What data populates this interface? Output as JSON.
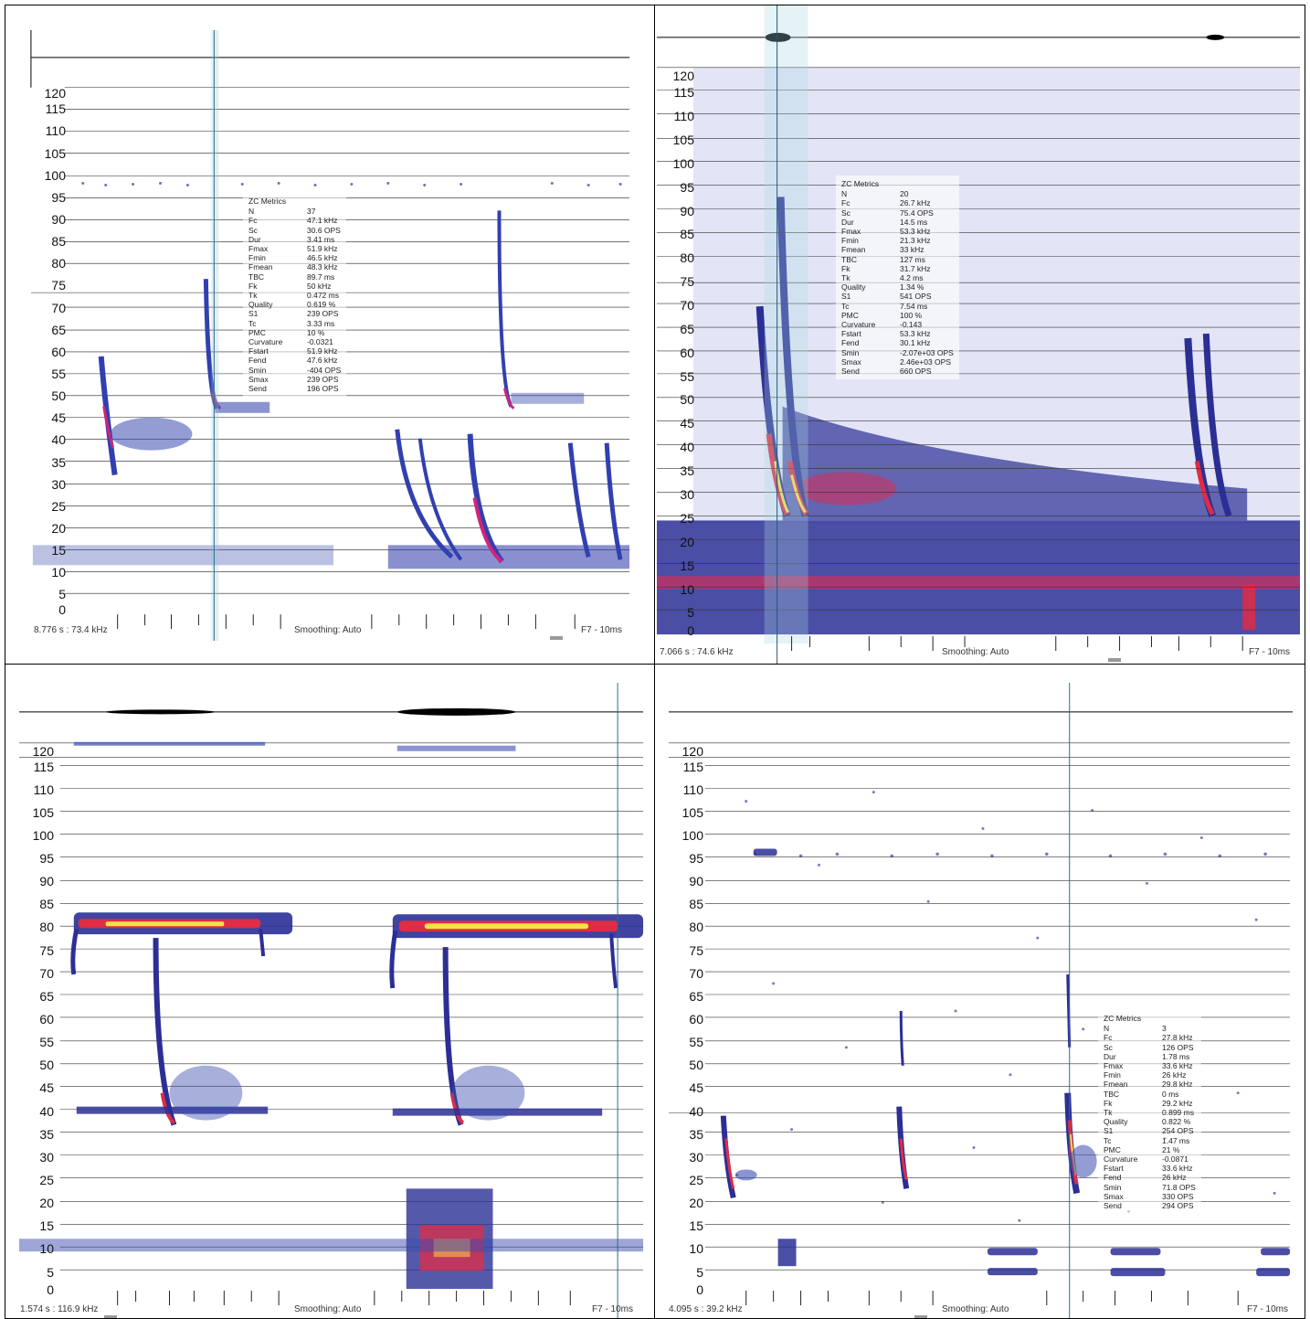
{
  "y_axis_labels": [
    "120",
    "115",
    "110",
    "105",
    "100",
    "95",
    "90",
    "85",
    "80",
    "75",
    "70",
    "65",
    "60",
    "55",
    "50",
    "45",
    "40",
    "35",
    "30",
    "25",
    "20",
    "15",
    "10",
    "5",
    "0"
  ],
  "panels": [
    {
      "id": "top-left",
      "position_readout": "8.776 s : 73.4 kHz",
      "smoothing": "Smoothing: Auto",
      "view_mode": "F7 - 10ms",
      "metrics_title": "ZC Metrics",
      "metrics": [
        {
          "k": "N",
          "v": "37"
        },
        {
          "k": "Fc",
          "v": "47.1 kHz"
        },
        {
          "k": "Sc",
          "v": "30.6 OPS"
        },
        {
          "k": "Dur",
          "v": "3.41 ms"
        },
        {
          "k": "Fmax",
          "v": "51.9 kHz"
        },
        {
          "k": "Fmin",
          "v": "46.5 kHz"
        },
        {
          "k": "Fmean",
          "v": "48.3 kHz"
        },
        {
          "k": "TBC",
          "v": "89.7 ms"
        },
        {
          "k": "Fk",
          "v": "50 kHz"
        },
        {
          "k": "Tk",
          "v": "0.472 ms"
        },
        {
          "k": "Quality",
          "v": "0.619 %"
        },
        {
          "k": "S1",
          "v": "239 OPS"
        },
        {
          "k": "Tc",
          "v": "3.33 ms"
        },
        {
          "k": "PMC",
          "v": "10 %"
        },
        {
          "k": "Curvature",
          "v": "-0.0321"
        },
        {
          "k": "Fstart",
          "v": "51.9 kHz"
        },
        {
          "k": "Fend",
          "v": "47.6 kHz"
        },
        {
          "k": "Smin",
          "v": "-404 OPS"
        },
        {
          "k": "Smax",
          "v": "239 OPS"
        },
        {
          "k": "Send",
          "v": "196 OPS"
        }
      ]
    },
    {
      "id": "top-right",
      "position_readout": "7.066 s : 74.6 kHz",
      "smoothing": "Smoothing: Auto",
      "view_mode": "F7 - 10ms",
      "metrics_title": "ZC Metrics",
      "metrics": [
        {
          "k": "N",
          "v": "20"
        },
        {
          "k": "Fc",
          "v": "26.7 kHz"
        },
        {
          "k": "Sc",
          "v": "75.4 OPS"
        },
        {
          "k": "Dur",
          "v": "14.5 ms"
        },
        {
          "k": "Fmax",
          "v": "53.3 kHz"
        },
        {
          "k": "Fmin",
          "v": "21.3 kHz"
        },
        {
          "k": "Fmean",
          "v": "33 kHz"
        },
        {
          "k": "TBC",
          "v": "127 ms"
        },
        {
          "k": "Fk",
          "v": "31.7 kHz"
        },
        {
          "k": "Tk",
          "v": "4.2 ms"
        },
        {
          "k": "Quality",
          "v": "1.34 %"
        },
        {
          "k": "S1",
          "v": "541 OPS"
        },
        {
          "k": "Tc",
          "v": "7.54 ms"
        },
        {
          "k": "PMC",
          "v": "100 %"
        },
        {
          "k": "Curvature",
          "v": "-0.143"
        },
        {
          "k": "Fstart",
          "v": "53.3 kHz"
        },
        {
          "k": "Fend",
          "v": "30.1 kHz"
        },
        {
          "k": "Smin",
          "v": "-2.07e+03 OPS"
        },
        {
          "k": "Smax",
          "v": "2.46e+03 OPS"
        },
        {
          "k": "Send",
          "v": "660 OPS"
        }
      ]
    },
    {
      "id": "bottom-left",
      "position_readout": "1.574 s : 116.9 kHz",
      "smoothing": "Smoothing: Auto",
      "view_mode": "F7 - 10ms",
      "metrics_title": "",
      "metrics": []
    },
    {
      "id": "bottom-right",
      "position_readout": "4.095 s : 39.2 kHz",
      "smoothing": "Smoothing: Auto",
      "view_mode": "F7 - 10ms",
      "metrics_title": "ZC Metrics",
      "metrics": [
        {
          "k": "N",
          "v": "3"
        },
        {
          "k": "Fc",
          "v": "27.8 kHz"
        },
        {
          "k": "Sc",
          "v": "126 OPS"
        },
        {
          "k": "Dur",
          "v": "1.78 ms"
        },
        {
          "k": "Fmax",
          "v": "33.6 kHz"
        },
        {
          "k": "Fmin",
          "v": "26 kHz"
        },
        {
          "k": "Fmean",
          "v": "29.8 kHz"
        },
        {
          "k": "TBC",
          "v": "0 ms"
        },
        {
          "k": "Fk",
          "v": "29.2 kHz"
        },
        {
          "k": "Tk",
          "v": "0.899 ms"
        },
        {
          "k": "Quality",
          "v": "0.822 %"
        },
        {
          "k": "S1",
          "v": "254 OPS"
        },
        {
          "k": "Tc",
          "v": "1.47 ms"
        },
        {
          "k": "PMC",
          "v": "21 %"
        },
        {
          "k": "Curvature",
          "v": "-0.0871"
        },
        {
          "k": "Fstart",
          "v": "33.6 kHz"
        },
        {
          "k": "Fend",
          "v": "26 kHz"
        },
        {
          "k": "Smin",
          "v": "71.8 OPS"
        },
        {
          "k": "Smax",
          "v": "330 OPS"
        },
        {
          "k": "Send",
          "v": "294 OPS"
        }
      ]
    }
  ]
}
